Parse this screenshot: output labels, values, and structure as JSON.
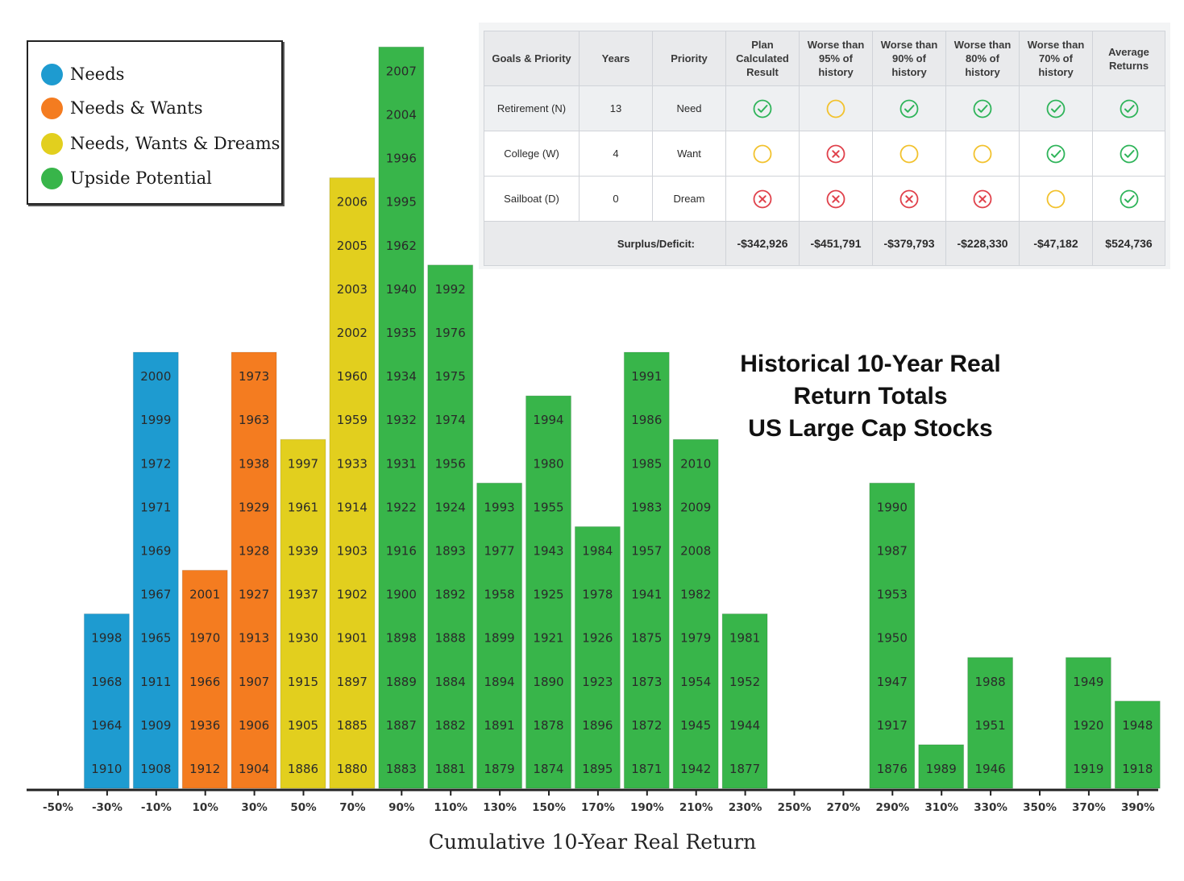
{
  "chart_data": {
    "type": "bar",
    "title_lines": [
      "Historical 10-Year Real",
      "Return Totals",
      "US Large Cap Stocks"
    ],
    "xlabel": "Cumulative 10-Year Real Return",
    "ylabel": "",
    "xticks": [
      "-50%",
      "-30%",
      "-10%",
      "10%",
      "30%",
      "50%",
      "70%",
      "90%",
      "110%",
      "130%",
      "150%",
      "170%",
      "190%",
      "210%",
      "230%",
      "250%",
      "270%",
      "290%",
      "310%",
      "330%",
      "350%",
      "370%",
      "390%"
    ],
    "legend_placement": "top-left",
    "legend": [
      {
        "label": "Needs",
        "color": "#1e9bd0"
      },
      {
        "label": "Needs & Wants",
        "color": "#f47c20"
      },
      {
        "label": "Needs, Wants & Dreams",
        "color": "#e2cf1e"
      },
      {
        "label": "Upside Potential",
        "color": "#38b54a"
      }
    ],
    "bins": [
      {
        "start": -40,
        "group": 0,
        "years": [
          "1910",
          "1964",
          "1968",
          "1998"
        ]
      },
      {
        "start": -20,
        "group": 0,
        "years": [
          "1908",
          "1909",
          "1911",
          "1965",
          "1967",
          "1969",
          "1971",
          "1972",
          "1999",
          "2000"
        ]
      },
      {
        "start": 0,
        "group": 1,
        "years": [
          "1912",
          "1936",
          "1966",
          "1970",
          "2001"
        ]
      },
      {
        "start": 20,
        "group": 1,
        "years": [
          "1904",
          "1906",
          "1907",
          "1913",
          "1927",
          "1928",
          "1929",
          "1938",
          "1963",
          "1973"
        ]
      },
      {
        "start": 40,
        "group": 2,
        "years": [
          "1886",
          "1905",
          "1915",
          "1930",
          "1937",
          "1939",
          "1961",
          "1997"
        ]
      },
      {
        "start": 60,
        "group": 2,
        "years": [
          "1880",
          "1885",
          "1897",
          "1901",
          "1902",
          "1903",
          "1914",
          "1933",
          "1959",
          "1960",
          "2002",
          "2003",
          "2005",
          "2006"
        ]
      },
      {
        "start": 80,
        "group": 3,
        "years": [
          "1883",
          "1887",
          "1889",
          "1898",
          "1900",
          "1916",
          "1922",
          "1931",
          "1932",
          "1934",
          "1935",
          "1940",
          "1962",
          "1995",
          "1996",
          "2004",
          "2007"
        ]
      },
      {
        "start": 100,
        "group": 3,
        "years": [
          "1881",
          "1882",
          "1884",
          "1888",
          "1892",
          "1893",
          "1924",
          "1956",
          "1974",
          "1975",
          "1976",
          "1992"
        ]
      },
      {
        "start": 120,
        "group": 3,
        "years": [
          "1879",
          "1891",
          "1894",
          "1899",
          "1958",
          "1977",
          "1993"
        ]
      },
      {
        "start": 140,
        "group": 3,
        "years": [
          "1874",
          "1878",
          "1890",
          "1921",
          "1925",
          "1943",
          "1955",
          "1980",
          "1994"
        ]
      },
      {
        "start": 160,
        "group": 3,
        "years": [
          "1895",
          "1896",
          "1923",
          "1926",
          "1978",
          "1984"
        ]
      },
      {
        "start": 180,
        "group": 3,
        "years": [
          "1871",
          "1872",
          "1873",
          "1875",
          "1941",
          "1957",
          "1983",
          "1985",
          "1986",
          "1991"
        ]
      },
      {
        "start": 200,
        "group": 3,
        "years": [
          "1942",
          "1945",
          "1954",
          "1979",
          "1982",
          "2008",
          "2009",
          "2010"
        ]
      },
      {
        "start": 220,
        "group": 3,
        "years": [
          "1877",
          "1944",
          "1952",
          "1981"
        ]
      },
      {
        "start": 280,
        "group": 3,
        "years": [
          "1876",
          "1917",
          "1947",
          "1950",
          "1953",
          "1987",
          "1990"
        ]
      },
      {
        "start": 300,
        "group": 3,
        "years": [
          "1989"
        ]
      },
      {
        "start": 320,
        "group": 3,
        "years": [
          "1946",
          "1951",
          "1988"
        ]
      },
      {
        "start": 360,
        "group": 3,
        "years": [
          "1919",
          "1920",
          "1949"
        ]
      },
      {
        "start": 380,
        "group": 3,
        "years": [
          "1918",
          "1948"
        ]
      }
    ],
    "bin_width": 20,
    "xlim": [
      -50,
      390
    ],
    "ylim": [
      0,
      17
    ]
  },
  "table": {
    "headers": [
      "Goals & Priority",
      "Years",
      "Priority",
      "Plan Calculated Result",
      "Worse than 95% of history",
      "Worse than 90% of history",
      "Worse than 80% of history",
      "Worse than 70% of history",
      "Average Returns"
    ],
    "rows": [
      {
        "goal": "Retirement (N)",
        "years": "13",
        "priority": "Need",
        "results": [
          "check",
          "caution",
          "check",
          "check",
          "check",
          "check"
        ]
      },
      {
        "goal": "College (W)",
        "years": "4",
        "priority": "Want",
        "results": [
          "caution",
          "fail",
          "caution",
          "caution",
          "check",
          "check"
        ]
      },
      {
        "goal": "Sailboat (D)",
        "years": "0",
        "priority": "Dream",
        "results": [
          "fail",
          "fail",
          "fail",
          "fail",
          "caution",
          "check"
        ]
      }
    ],
    "total_label": "Surplus/Deficit:",
    "totals": [
      "-$342,926",
      "-$451,791",
      "-$379,793",
      "-$228,330",
      "-$47,182",
      "$524,736"
    ],
    "status_colors": {
      "check": "#2fb45a",
      "caution": "#f2c22e",
      "fail": "#e0414b"
    }
  }
}
